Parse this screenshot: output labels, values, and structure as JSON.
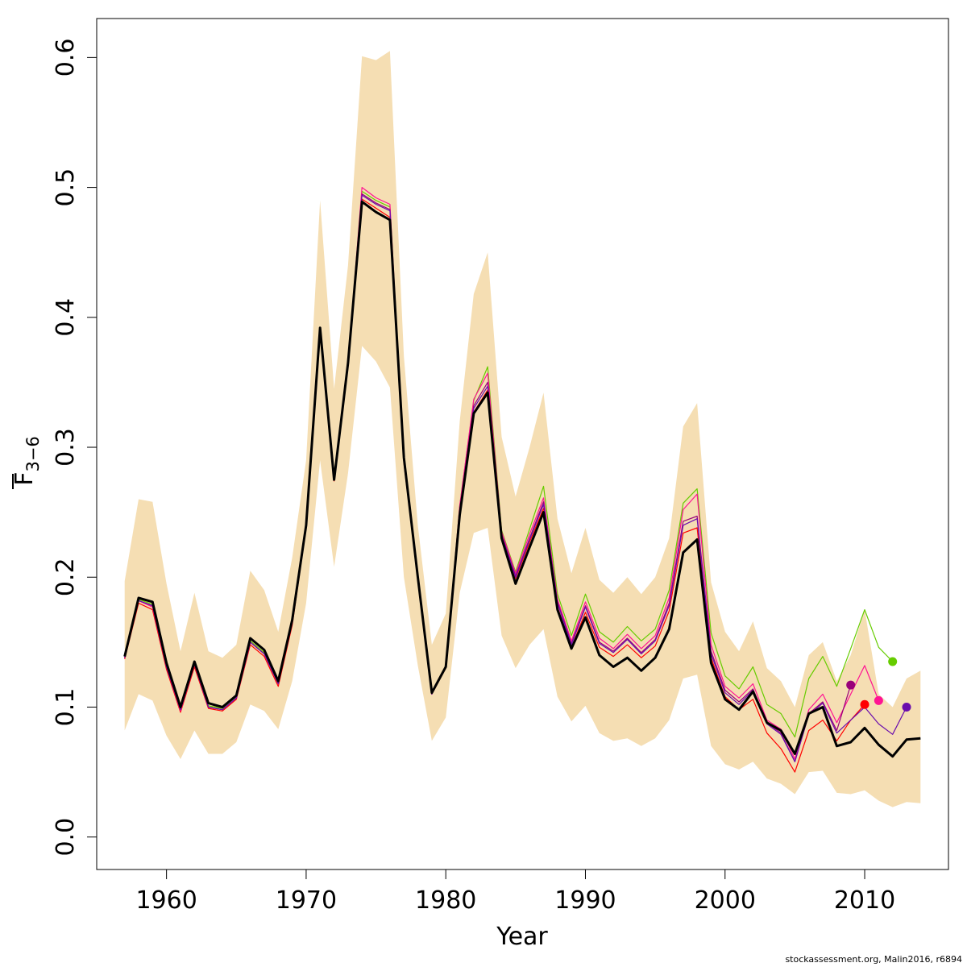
{
  "chart_data": {
    "type": "line",
    "xlabel": "Year",
    "ylabel_main": "F",
    "ylabel_sub": "3−6",
    "xlim": [
      1955,
      2016
    ],
    "ylim": [
      -0.025,
      0.63
    ],
    "x_ticks": [
      1960,
      1970,
      1980,
      1990,
      2000,
      2010
    ],
    "y_ticks": [
      0.0,
      0.1,
      0.2,
      0.3,
      0.4,
      0.5,
      0.6
    ],
    "y_tick_labels": [
      "0.0",
      "0.1",
      "0.2",
      "0.3",
      "0.4",
      "0.5",
      "0.6"
    ],
    "grid": false,
    "legend": "none",
    "band_color": "#F5DEB3",
    "confidence_band": {
      "x": [
        1957,
        1958,
        1959,
        1960,
        1961,
        1962,
        1963,
        1964,
        1965,
        1966,
        1967,
        1968,
        1969,
        1970,
        1971,
        1972,
        1973,
        1974,
        1975,
        1976,
        1977,
        1978,
        1979,
        1980,
        1981,
        1982,
        1983,
        1984,
        1985,
        1986,
        1987,
        1988,
        1989,
        1990,
        1991,
        1992,
        1993,
        1994,
        1995,
        1996,
        1997,
        1998,
        1999,
        2000,
        2001,
        2002,
        2003,
        2004,
        2005,
        2006,
        2007,
        2008,
        2009,
        2010,
        2011,
        2012,
        2013,
        2014
      ],
      "upper": [
        0.197,
        0.26,
        0.258,
        0.195,
        0.143,
        0.188,
        0.143,
        0.138,
        0.148,
        0.205,
        0.19,
        0.158,
        0.215,
        0.29,
        0.49,
        0.345,
        0.44,
        0.601,
        0.598,
        0.605,
        0.37,
        0.24,
        0.148,
        0.172,
        0.32,
        0.418,
        0.45,
        0.308,
        0.262,
        0.3,
        0.342,
        0.245,
        0.203,
        0.238,
        0.198,
        0.188,
        0.2,
        0.187,
        0.2,
        0.23,
        0.316,
        0.334,
        0.196,
        0.158,
        0.143,
        0.166,
        0.13,
        0.12,
        0.1,
        0.14,
        0.15,
        0.12,
        0.14,
        0.175,
        0.11,
        0.1,
        0.122,
        0.128
      ],
      "lower": [
        0.082,
        0.11,
        0.105,
        0.078,
        0.06,
        0.082,
        0.064,
        0.064,
        0.073,
        0.102,
        0.097,
        0.083,
        0.12,
        0.18,
        0.29,
        0.208,
        0.28,
        0.378,
        0.366,
        0.346,
        0.2,
        0.132,
        0.074,
        0.092,
        0.188,
        0.234,
        0.238,
        0.155,
        0.13,
        0.148,
        0.16,
        0.108,
        0.089,
        0.101,
        0.08,
        0.074,
        0.076,
        0.07,
        0.076,
        0.09,
        0.122,
        0.125,
        0.07,
        0.056,
        0.052,
        0.058,
        0.045,
        0.041,
        0.033,
        0.05,
        0.051,
        0.034,
        0.033,
        0.036,
        0.028,
        0.023,
        0.027,
        0.026
      ]
    },
    "series": [
      {
        "color": "#66CC00",
        "x": [
          1957,
          1958,
          1959,
          1960,
          1961,
          1962,
          1963,
          1964,
          1965,
          1966,
          1967,
          1968,
          1969,
          1970,
          1971,
          1972,
          1973,
          1974,
          1975,
          1976,
          1977,
          1978,
          1979,
          1980,
          1981,
          1982,
          1983,
          1984,
          1985,
          1986,
          1987,
          1988,
          1989,
          1990,
          1991,
          1992,
          1993,
          1994,
          1995,
          1996,
          1997,
          1998,
          1999,
          2000,
          2001,
          2002,
          2003,
          2004,
          2005,
          2006,
          2007,
          2008,
          2009,
          2010,
          2011,
          2012
        ],
        "y": [
          0.139,
          0.183,
          0.179,
          0.132,
          0.098,
          0.134,
          0.101,
          0.099,
          0.108,
          0.151,
          0.142,
          0.119,
          0.166,
          0.24,
          0.391,
          0.276,
          0.365,
          0.497,
          0.49,
          0.485,
          0.29,
          0.2,
          0.111,
          0.131,
          0.255,
          0.336,
          0.362,
          0.236,
          0.204,
          0.237,
          0.27,
          0.187,
          0.155,
          0.187,
          0.158,
          0.15,
          0.162,
          0.151,
          0.16,
          0.19,
          0.257,
          0.268,
          0.157,
          0.124,
          0.114,
          0.131,
          0.102,
          0.095,
          0.077,
          0.122,
          0.139,
          0.116,
          0.145,
          0.175,
          0.146,
          0.135
        ],
        "endpoint": {
          "x": 2012,
          "y": 0.135
        }
      },
      {
        "color": "#FF0000",
        "x": [
          1957,
          1958,
          1959,
          1960,
          1961,
          1962,
          1963,
          1964,
          1965,
          1966,
          1967,
          1968,
          1969,
          1970,
          1971,
          1972,
          1973,
          1974,
          1975,
          1976,
          1977,
          1978,
          1979,
          1980,
          1981,
          1982,
          1983,
          1984,
          1985,
          1986,
          1987,
          1988,
          1989,
          1990,
          1991,
          1992,
          1993,
          1994,
          1995,
          1996,
          1997,
          1998,
          1999,
          2000,
          2001,
          2002,
          2003,
          2004,
          2005,
          2006,
          2007,
          2008,
          2009,
          2010
        ],
        "y": [
          0.137,
          0.18,
          0.175,
          0.129,
          0.096,
          0.131,
          0.099,
          0.097,
          0.106,
          0.148,
          0.139,
          0.116,
          0.163,
          0.238,
          0.388,
          0.274,
          0.362,
          0.491,
          0.484,
          0.477,
          0.288,
          0.198,
          0.11,
          0.13,
          0.25,
          0.327,
          0.344,
          0.23,
          0.199,
          0.227,
          0.253,
          0.177,
          0.146,
          0.173,
          0.146,
          0.139,
          0.148,
          0.138,
          0.147,
          0.174,
          0.234,
          0.238,
          0.138,
          0.108,
          0.098,
          0.106,
          0.08,
          0.068,
          0.05,
          0.082,
          0.09,
          0.074,
          0.09,
          0.102
        ],
        "endpoint": {
          "x": 2010,
          "y": 0.102
        }
      },
      {
        "color": "#FF1493",
        "x": [
          1957,
          1958,
          1959,
          1960,
          1961,
          1962,
          1963,
          1964,
          1965,
          1966,
          1967,
          1968,
          1969,
          1970,
          1971,
          1972,
          1973,
          1974,
          1975,
          1976,
          1977,
          1978,
          1979,
          1980,
          1981,
          1982,
          1983,
          1984,
          1985,
          1986,
          1987,
          1988,
          1989,
          1990,
          1991,
          1992,
          1993,
          1994,
          1995,
          1996,
          1997,
          1998,
          1999,
          2000,
          2001,
          2002,
          2003,
          2004,
          2005,
          2006,
          2007,
          2008,
          2009,
          2010,
          2011
        ],
        "y": [
          0.138,
          0.182,
          0.177,
          0.131,
          0.097,
          0.133,
          0.1,
          0.098,
          0.107,
          0.15,
          0.141,
          0.118,
          0.165,
          0.239,
          0.39,
          0.275,
          0.364,
          0.5,
          0.492,
          0.487,
          0.29,
          0.2,
          0.111,
          0.131,
          0.255,
          0.337,
          0.357,
          0.235,
          0.203,
          0.233,
          0.261,
          0.183,
          0.151,
          0.181,
          0.153,
          0.145,
          0.156,
          0.145,
          0.155,
          0.184,
          0.252,
          0.264,
          0.148,
          0.116,
          0.107,
          0.118,
          0.09,
          0.083,
          0.06,
          0.098,
          0.11,
          0.088,
          0.11,
          0.132,
          0.105
        ],
        "endpoint": {
          "x": 2011,
          "y": 0.105
        }
      },
      {
        "color": "#99007A",
        "x": [
          1957,
          1958,
          1959,
          1960,
          1961,
          1962,
          1963,
          1964,
          1965,
          1966,
          1967,
          1968,
          1969,
          1970,
          1971,
          1972,
          1973,
          1974,
          1975,
          1976,
          1977,
          1978,
          1979,
          1980,
          1981,
          1982,
          1983,
          1984,
          1985,
          1986,
          1987,
          1988,
          1989,
          1990,
          1991,
          1992,
          1993,
          1994,
          1995,
          1996,
          1997,
          1998,
          1999,
          2000,
          2001,
          2002,
          2003,
          2004,
          2005,
          2006,
          2007,
          2008,
          2009
        ],
        "y": [
          0.138,
          0.182,
          0.178,
          0.131,
          0.098,
          0.134,
          0.1,
          0.098,
          0.107,
          0.15,
          0.141,
          0.118,
          0.165,
          0.239,
          0.39,
          0.275,
          0.364,
          0.495,
          0.488,
          0.483,
          0.289,
          0.199,
          0.11,
          0.131,
          0.252,
          0.332,
          0.35,
          0.233,
          0.201,
          0.23,
          0.258,
          0.181,
          0.149,
          0.178,
          0.15,
          0.143,
          0.153,
          0.142,
          0.152,
          0.18,
          0.243,
          0.247,
          0.143,
          0.113,
          0.104,
          0.114,
          0.088,
          0.08,
          0.058,
          0.095,
          0.104,
          0.082,
          0.117
        ],
        "endpoint": {
          "x": 2009,
          "y": 0.117
        }
      },
      {
        "color": "#6A0DAD",
        "x": [
          1957,
          1958,
          1959,
          1960,
          1961,
          1962,
          1963,
          1964,
          1965,
          1966,
          1967,
          1968,
          1969,
          1970,
          1971,
          1972,
          1973,
          1974,
          1975,
          1976,
          1977,
          1978,
          1979,
          1980,
          1981,
          1982,
          1983,
          1984,
          1985,
          1986,
          1987,
          1988,
          1989,
          1990,
          1991,
          1992,
          1993,
          1994,
          1995,
          1996,
          1997,
          1998,
          1999,
          2000,
          2001,
          2002,
          2003,
          2004,
          2005,
          2006,
          2007,
          2008,
          2009,
          2010,
          2011,
          2012,
          2013
        ],
        "y": [
          0.138,
          0.182,
          0.178,
          0.131,
          0.098,
          0.133,
          0.1,
          0.098,
          0.107,
          0.15,
          0.141,
          0.118,
          0.165,
          0.239,
          0.39,
          0.275,
          0.364,
          0.494,
          0.487,
          0.482,
          0.289,
          0.199,
          0.11,
          0.131,
          0.251,
          0.33,
          0.347,
          0.232,
          0.2,
          0.229,
          0.256,
          0.18,
          0.148,
          0.177,
          0.149,
          0.142,
          0.152,
          0.141,
          0.151,
          0.178,
          0.24,
          0.245,
          0.141,
          0.111,
          0.102,
          0.113,
          0.087,
          0.079,
          0.058,
          0.094,
          0.103,
          0.08,
          0.09,
          0.1,
          0.087,
          0.079,
          0.1
        ],
        "endpoint": {
          "x": 2013,
          "y": 0.1
        }
      },
      {
        "color": "#000000",
        "main": true,
        "x": [
          1957,
          1958,
          1959,
          1960,
          1961,
          1962,
          1963,
          1964,
          1965,
          1966,
          1967,
          1968,
          1969,
          1970,
          1971,
          1972,
          1973,
          1974,
          1975,
          1976,
          1977,
          1978,
          1979,
          1980,
          1981,
          1982,
          1983,
          1984,
          1985,
          1986,
          1987,
          1988,
          1989,
          1990,
          1991,
          1992,
          1993,
          1994,
          1995,
          1996,
          1997,
          1998,
          1999,
          2000,
          2001,
          2002,
          2003,
          2004,
          2005,
          2006,
          2007,
          2008,
          2009,
          2010,
          2011,
          2012,
          2013,
          2014
        ],
        "y": [
          0.139,
          0.184,
          0.181,
          0.134,
          0.1,
          0.135,
          0.103,
          0.1,
          0.109,
          0.153,
          0.144,
          0.12,
          0.167,
          0.24,
          0.392,
          0.275,
          0.365,
          0.489,
          0.481,
          0.475,
          0.292,
          0.2,
          0.111,
          0.131,
          0.248,
          0.326,
          0.342,
          0.23,
          0.195,
          0.223,
          0.25,
          0.175,
          0.145,
          0.169,
          0.14,
          0.131,
          0.138,
          0.128,
          0.138,
          0.16,
          0.219,
          0.229,
          0.134,
          0.106,
          0.098,
          0.112,
          0.088,
          0.082,
          0.064,
          0.095,
          0.1,
          0.07,
          0.073,
          0.084,
          0.071,
          0.062,
          0.075,
          0.076
        ]
      }
    ]
  },
  "credit": "stockassessment.org, Malin2016, r6894"
}
